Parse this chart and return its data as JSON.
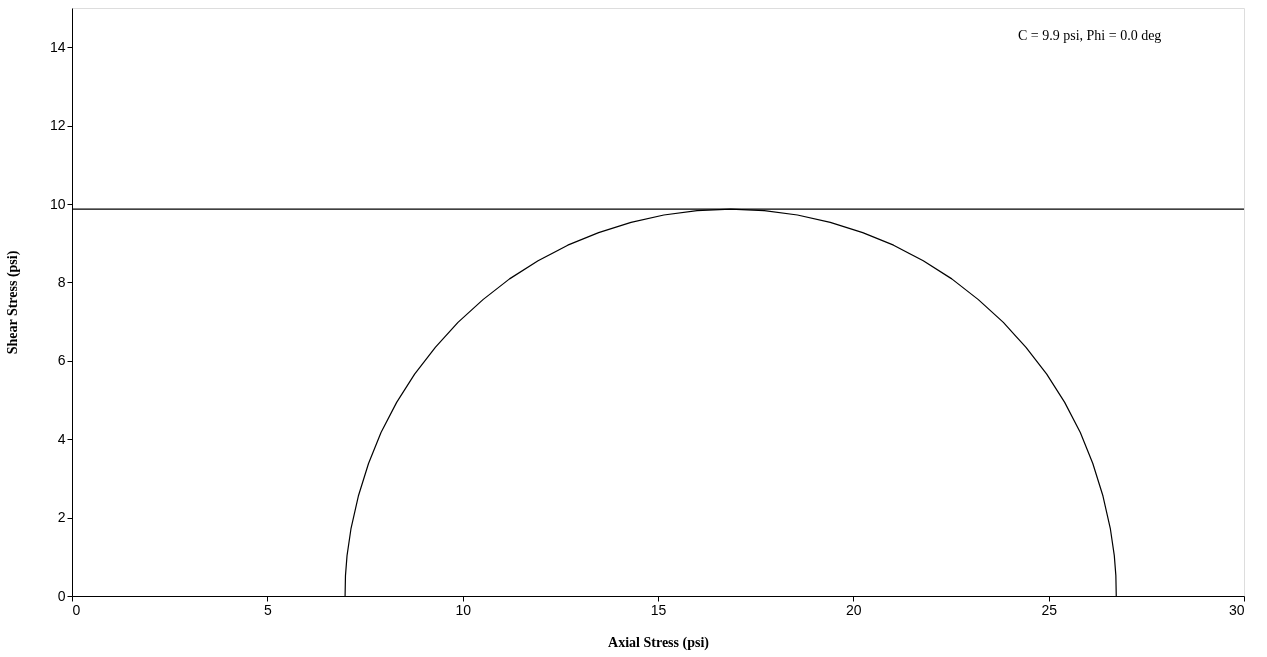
{
  "chart_data": {
    "type": "line",
    "xlabel": "Axial Stress (psi)",
    "ylabel": "Shear Stress (psi)",
    "annotations": [
      "C = 9.9 psi, Phi = 0.0 deg"
    ],
    "series": [
      {
        "color": "#000000",
        "x": [
          6.99,
          7.0,
          7.04,
          7.14,
          7.33,
          7.59,
          7.91,
          8.31,
          8.77,
          9.3,
          9.88,
          10.52,
          11.2,
          11.93,
          12.69,
          13.48,
          14.31,
          15.15,
          16.0,
          16.86,
          17.72,
          18.57,
          19.41,
          20.24,
          21.03,
          21.79,
          22.52,
          23.2,
          23.84,
          24.42,
          24.95,
          25.41,
          25.81,
          26.13,
          26.39,
          26.58,
          26.68,
          26.72,
          26.73
        ],
        "values": [
          0,
          0.52,
          1.03,
          1.71,
          2.55,
          3.38,
          4.17,
          4.94,
          5.66,
          6.34,
          6.98,
          7.56,
          8.09,
          8.55,
          8.95,
          9.27,
          9.53,
          9.72,
          9.83,
          9.87,
          9.83,
          9.72,
          9.53,
          9.27,
          8.95,
          8.55,
          8.09,
          7.56,
          6.98,
          6.34,
          5.66,
          4.94,
          4.17,
          3.38,
          2.55,
          1.71,
          1.03,
          0.52,
          0
        ]
      }
    ],
    "ref_lines": [
      {
        "axis": "y",
        "value": 9.87,
        "color": "#000000"
      }
    ],
    "xlim": [
      0,
      30
    ],
    "xticks": [
      0,
      5,
      10,
      15,
      20,
      25,
      30
    ],
    "ylim": [
      0,
      15
    ],
    "yticks": [
      0,
      2,
      4,
      6,
      8,
      10,
      12,
      14
    ],
    "grid": false,
    "legend": false,
    "marker": "none",
    "line_style": "solid"
  }
}
